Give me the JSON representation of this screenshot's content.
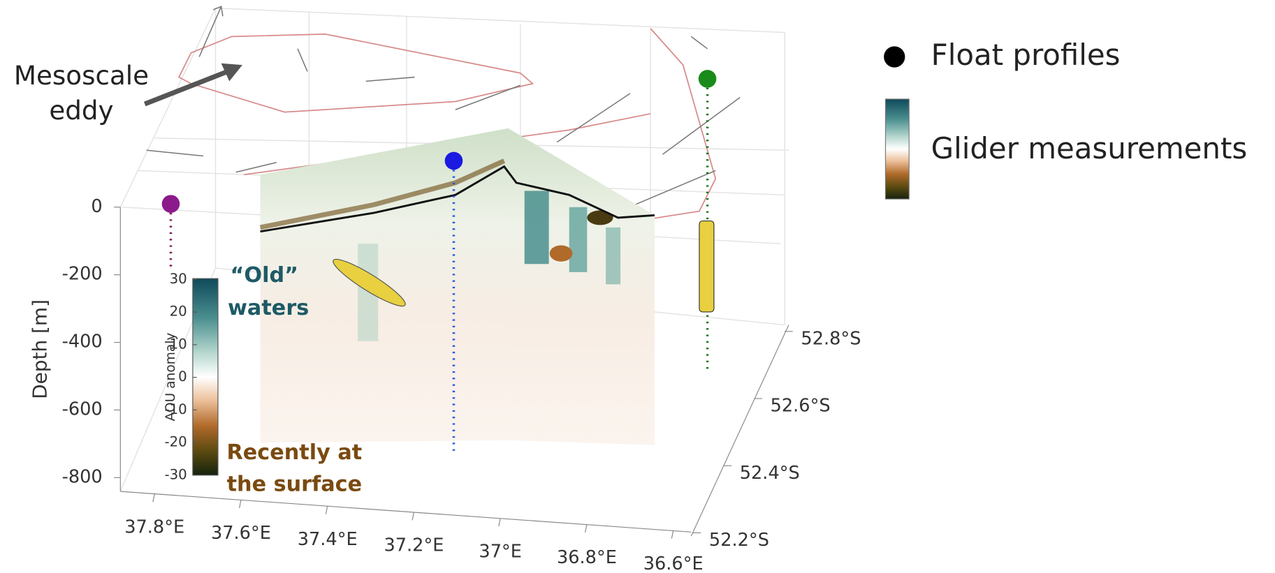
{
  "chart_data": {
    "type": "section3d",
    "zlabel": "Depth [m]",
    "zlim": [
      -800,
      0
    ],
    "zticks": [
      0,
      -200,
      -400,
      -600,
      -800
    ],
    "xlim": [
      37.8,
      36.6
    ],
    "xticks": [
      {
        "value": 37.8,
        "label": "37.8°E"
      },
      {
        "value": 37.6,
        "label": "37.6°E"
      },
      {
        "value": 37.4,
        "label": "37.4°E"
      },
      {
        "value": 37.2,
        "label": "37.2°E"
      },
      {
        "value": 37,
        "label": "37°E"
      },
      {
        "value": 36.8,
        "label": "36.8°E"
      },
      {
        "value": 36.6,
        "label": "36.6°E"
      }
    ],
    "ylim": [
      -52.2,
      -52.8
    ],
    "yticks": [
      {
        "value": -52.2,
        "label": "52.2°S"
      },
      {
        "value": -52.4,
        "label": "52.4°S"
      },
      {
        "value": -52.6,
        "label": "52.6°S"
      },
      {
        "value": -52.8,
        "label": "52.8°S"
      }
    ],
    "colorbar": {
      "label": "AOU anomaly",
      "lim": [
        -30,
        30
      ],
      "ticks": [
        30,
        20,
        10,
        0,
        -10,
        -20,
        -30
      ]
    },
    "annotations": [
      {
        "lines": [
          "Mesoscale",
          "eddy"
        ]
      },
      {
        "lines": [
          "“Old”",
          "waters"
        ]
      },
      {
        "lines": [
          "Recently at",
          "the surface"
        ]
      }
    ],
    "legend": [
      "Float profiles",
      "Glider measurements"
    ]
  }
}
